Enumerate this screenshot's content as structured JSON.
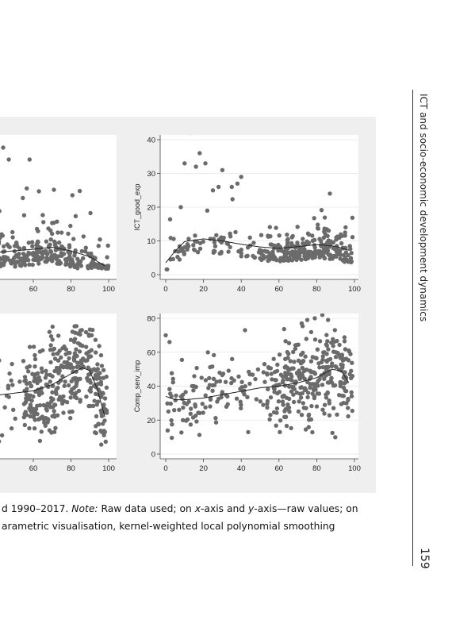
{
  "running_header": "ICT and socio-economic development dynamics",
  "page_number": "159",
  "caption": {
    "line1_pre": "d 1990–2017. ",
    "line1_note": "Note:",
    "line1_post_a": " Raw data used; on ",
    "line1_x": "x",
    "line1_post_b": "-axis and ",
    "line1_y": "y",
    "line1_post_c": "-axis—raw values; on",
    "line2": "arametric visualisation, kernel-weighted local polynomial smoothing"
  },
  "colors": {
    "marker": "#6b6b6b",
    "smooth": "#222222",
    "panel": "#ffffff",
    "grid": "#e6e6e6"
  },
  "chart_data": [
    {
      "panel": "top-left",
      "type": "scatter",
      "ylabel": "",
      "xlim": [
        0,
        100
      ],
      "xticks": [
        60,
        80,
        100
      ],
      "seed": 11,
      "n": 260,
      "smooth": {
        "x": [
          40,
          50,
          60,
          70,
          80,
          90,
          98
        ],
        "y": [
          4.6,
          5.0,
          5.4,
          5.9,
          5.0,
          3.5,
          1.2
        ]
      },
      "points": [
        [
          44,
          31
        ],
        [
          47,
          28
        ],
        [
          58,
          28
        ],
        [
          63,
          20
        ],
        [
          42,
          15
        ],
        [
          65,
          14
        ],
        [
          70,
          12
        ]
      ]
    },
    {
      "panel": "top-right",
      "type": "scatter",
      "ylabel": "ICT_good_exp",
      "xlim": [
        0,
        100
      ],
      "ylim": [
        0,
        40
      ],
      "xticks": [
        0,
        20,
        40,
        60,
        80,
        100
      ],
      "yticks": [
        0,
        10,
        20,
        30,
        40
      ],
      "seed": 23,
      "n": 330,
      "smooth": {
        "x": [
          0,
          5,
          10,
          20,
          30,
          40,
          50,
          60,
          70,
          80,
          90,
          97
        ],
        "y": [
          3.5,
          7,
          9.8,
          10.6,
          10,
          9,
          8.2,
          7.8,
          8.3,
          8.9,
          8.4,
          7.2
        ]
      },
      "points": [
        [
          13,
          42
        ],
        [
          18,
          36
        ],
        [
          16,
          32
        ],
        [
          21,
          33
        ],
        [
          25,
          25
        ],
        [
          28,
          26
        ],
        [
          30,
          31
        ],
        [
          35,
          26
        ],
        [
          38,
          27
        ],
        [
          40,
          29
        ],
        [
          8,
          20
        ],
        [
          10,
          33
        ],
        [
          22,
          19
        ]
      ]
    },
    {
      "panel": "bottom-left",
      "type": "scatter",
      "ylabel": "",
      "xlim": [
        0,
        100
      ],
      "xticks": [
        0,
        20,
        40,
        60,
        80,
        100
      ],
      "seed": 37,
      "n": 420,
      "smooth": {
        "x": [
          0,
          20,
          40,
          60,
          70,
          80,
          86,
          90,
          94,
          98
        ],
        "y": [
          35,
          35,
          36,
          39,
          43,
          50,
          54,
          52,
          40,
          22
        ]
      },
      "points": [
        [
          85,
          78
        ],
        [
          88,
          77
        ],
        [
          91,
          75
        ],
        [
          93,
          72
        ],
        [
          80,
          72
        ],
        [
          95,
          68
        ],
        [
          96,
          62
        ]
      ]
    },
    {
      "panel": "bottom-right",
      "type": "scatter",
      "ylabel": "Comp_serv_imp",
      "xlim": [
        0,
        100
      ],
      "ylim": [
        0,
        80
      ],
      "xticks": [
        0,
        20,
        40,
        60,
        80,
        100
      ],
      "yticks": [
        0,
        20,
        40,
        60,
        80
      ],
      "seed": 53,
      "n": 430,
      "smooth": {
        "x": [
          0,
          5,
          10,
          20,
          30,
          40,
          50,
          60,
          70,
          80,
          88,
          93,
          97
        ],
        "y": [
          34,
          32,
          32,
          33,
          35,
          37,
          39,
          40,
          42,
          45,
          50,
          49,
          42
        ]
      },
      "points": [
        [
          42,
          73
        ],
        [
          72,
          77
        ],
        [
          75,
          79
        ],
        [
          79,
          80
        ],
        [
          83,
          82
        ],
        [
          86,
          79
        ],
        [
          0,
          70
        ],
        [
          2,
          66
        ]
      ]
    }
  ]
}
